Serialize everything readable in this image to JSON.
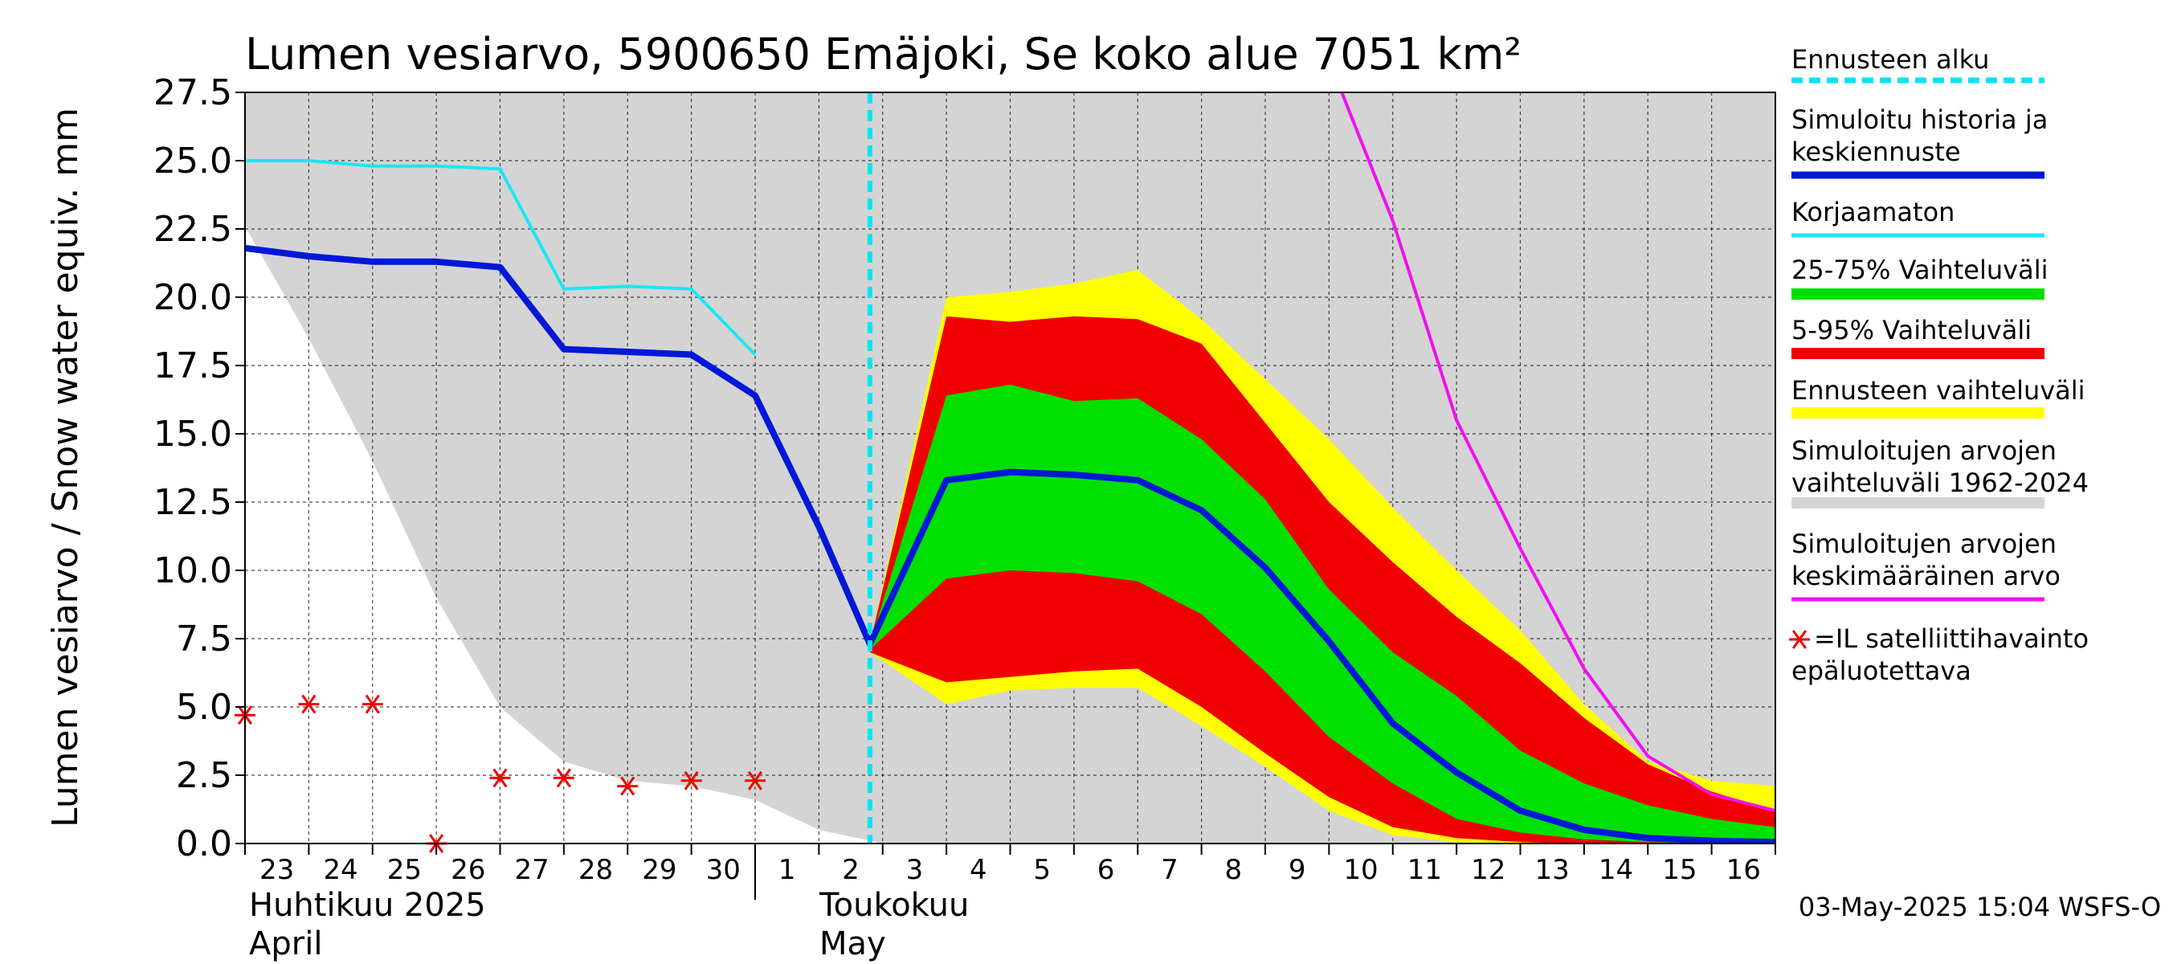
{
  "chart_data": {
    "type": "area",
    "title": "Lumen vesiarvo, 5900650 Emäjoki, Se koko alue 7051 km²",
    "ylabel": "Lumen vesiarvo / Snow water equiv.    mm",
    "ylim": [
      0,
      27.5
    ],
    "yticks": [
      "0.0",
      "2.5",
      "5.0",
      "7.5",
      "10.0",
      "12.5",
      "15.0",
      "17.5",
      "20.0",
      "22.5",
      "25.0",
      "27.5"
    ],
    "xlim": [
      23,
      47
    ],
    "xtick_labels": [
      "23",
      "24",
      "25",
      "26",
      "27",
      "28",
      "29",
      "30",
      "1",
      "2",
      "3",
      "4",
      "5",
      "6",
      "7",
      "8",
      "9",
      "10",
      "11",
      "12",
      "13",
      "14",
      "15",
      "16"
    ],
    "month_labels": {
      "april_fi": "Huhtikuu  2025",
      "april_en": "April",
      "may_fi": "Toukokuu",
      "may_en": "May"
    },
    "x_note": "x values: day index, 23 = 23 April, 31 = 1 May, 33 = 3 May, 46 = 16 May",
    "grid": true,
    "footer": "03-May-2025 15:04 WSFS-O",
    "legend_position": "right",
    "legend": [
      {
        "key": "forecast_start",
        "label": "Ennusteen alku",
        "color": "#00e5f0"
      },
      {
        "key": "simulated",
        "label": "Simuloitu historia ja keskiennuste",
        "color": "#0018d8"
      },
      {
        "key": "uncorrected",
        "label": "Korjaamaton",
        "color": "#19e7f5"
      },
      {
        "key": "band_25_75",
        "label": "25-75% Vaihteluväli",
        "color": "#00e000"
      },
      {
        "key": "band_5_95",
        "label": "5-95% Vaihteluväli",
        "color": "#f00000"
      },
      {
        "key": "band_forecast",
        "label": "Ennusteen vaihteluväli",
        "color": "#ffff00"
      },
      {
        "key": "hist_range",
        "label": "Simuloitujen arvojen vaihteluväli 1962-2024",
        "color": "#d4d4d4"
      },
      {
        "key": "hist_mean",
        "label": "Simuloitujen arvojen keskimääräinen arvo",
        "color": "#f010f0"
      },
      {
        "key": "satellite",
        "label": "=IL satelliittihavainto epäluotettava",
        "color": "#f00000"
      }
    ],
    "forecast_start_x": 32.8,
    "hist_range_lower": {
      "x": [
        23,
        24,
        25,
        26,
        27,
        28,
        29,
        30,
        31,
        32,
        33,
        47
      ],
      "y": [
        22.6,
        18.5,
        14.0,
        9.0,
        5.0,
        3.0,
        2.3,
        2.1,
        1.6,
        0.5,
        0.0,
        0.0
      ]
    },
    "simulated": {
      "x": [
        23,
        24,
        25,
        26,
        27,
        28,
        29,
        30,
        31,
        32,
        32.8,
        34,
        35,
        36,
        37,
        38,
        39,
        40,
        41,
        42,
        43,
        44,
        45,
        46,
        47
      ],
      "y": [
        21.8,
        21.5,
        21.3,
        21.3,
        21.1,
        18.1,
        18.0,
        17.9,
        16.4,
        11.6,
        7.3,
        13.3,
        13.6,
        13.5,
        13.3,
        12.2,
        10.1,
        7.4,
        4.4,
        2.6,
        1.2,
        0.5,
        0.2,
        0.1,
        0.05
      ]
    },
    "uncorrected": {
      "x": [
        23,
        24,
        25,
        26,
        27,
        28,
        29,
        30,
        31
      ],
      "y": [
        25.0,
        25.0,
        24.8,
        24.8,
        24.7,
        20.3,
        20.4,
        20.3,
        17.9
      ]
    },
    "band_forecast": {
      "x": [
        32.8,
        34,
        35,
        36,
        37,
        38,
        39,
        40,
        41,
        42,
        43,
        44,
        45,
        46,
        47
      ],
      "upper": [
        7.3,
        20.0,
        20.2,
        20.5,
        21.0,
        19.2,
        17.0,
        14.8,
        12.3,
        10.0,
        7.8,
        5.1,
        3.0,
        2.3,
        2.1
      ],
      "lower": [
        7.0,
        5.1,
        5.6,
        5.7,
        5.7,
        4.3,
        2.8,
        1.2,
        0.3,
        0.05,
        0.0,
        0.0,
        0.0,
        0.0,
        0.0
      ]
    },
    "band_5_95": {
      "x": [
        32.8,
        34,
        35,
        36,
        37,
        38,
        39,
        40,
        41,
        42,
        43,
        44,
        45,
        46,
        47
      ],
      "upper": [
        7.3,
        19.3,
        19.1,
        19.3,
        19.2,
        18.3,
        15.4,
        12.5,
        10.3,
        8.3,
        6.6,
        4.6,
        2.9,
        1.9,
        1.2
      ],
      "lower": [
        7.0,
        5.9,
        6.1,
        6.3,
        6.4,
        5.0,
        3.3,
        1.7,
        0.6,
        0.2,
        0.05,
        0.0,
        0.0,
        0.0,
        0.0
      ]
    },
    "band_25_75": {
      "x": [
        32.8,
        34,
        35,
        36,
        37,
        38,
        39,
        40,
        41,
        42,
        43,
        44,
        45,
        46,
        47
      ],
      "upper": [
        7.3,
        16.4,
        16.8,
        16.2,
        16.3,
        14.8,
        12.6,
        9.3,
        7.0,
        5.4,
        3.4,
        2.2,
        1.4,
        0.9,
        0.6
      ],
      "lower": [
        7.1,
        9.7,
        10.0,
        9.9,
        9.6,
        8.4,
        6.3,
        3.9,
        2.2,
        0.9,
        0.4,
        0.15,
        0.05,
        0.0,
        0.0
      ]
    },
    "hist_mean": {
      "x": [
        40.2,
        41,
        42,
        43,
        44,
        45,
        46,
        47
      ],
      "y": [
        27.5,
        22.8,
        15.5,
        10.8,
        6.4,
        3.2,
        1.8,
        1.2
      ]
    },
    "satellite": {
      "x": [
        23,
        24,
        25,
        26,
        27,
        28,
        29,
        30,
        31
      ],
      "y": [
        4.7,
        5.1,
        5.1,
        0.0,
        2.4,
        2.4,
        2.1,
        2.3,
        2.3
      ]
    }
  }
}
